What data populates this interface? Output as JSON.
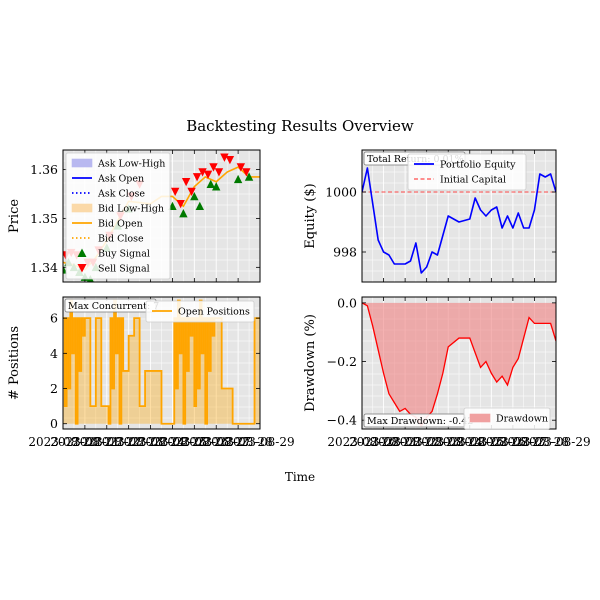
{
  "figure": {
    "title": "Backtesting Results Overview",
    "xlabel": "Time"
  },
  "chart_data": [
    {
      "type": "line",
      "panel": "price",
      "ylabel": "Price",
      "yticks": [
        "1.34",
        "1.35",
        "1.36"
      ],
      "ylim": [
        1.337,
        1.364
      ],
      "xticks": [
        "2023-08-20",
        "2023-08-21",
        "2023-08-22",
        "2023-08-23",
        "2023-08-24",
        "2023-08-25",
        "2023-08-26",
        "2023-08-27",
        "2023-08-28",
        "2023-08-29"
      ],
      "xlim": [
        "2023-08-20",
        "2023-08-29"
      ],
      "grid": true,
      "legend_placement": "upper-left",
      "legend": [
        {
          "label": "Ask Low-High",
          "kind": "fill",
          "color": "#b8b8f0"
        },
        {
          "label": "Ask Open",
          "kind": "line",
          "color": "#0000ff"
        },
        {
          "label": "Ask Close",
          "kind": "dotted",
          "color": "#0000ff"
        },
        {
          "label": "Bid Low-High",
          "kind": "fill",
          "color": "#fbd9a8"
        },
        {
          "label": "Bid Open",
          "kind": "line",
          "color": "#ffa500"
        },
        {
          "label": "Bid Close",
          "kind": "dotted",
          "color": "#ffa500"
        },
        {
          "label": "Buy Signal",
          "kind": "up-triangle",
          "color": "#007a00"
        },
        {
          "label": "Sell Signal",
          "kind": "down-triangle",
          "color": "#ff0000"
        }
      ],
      "series": [
        {
          "name": "Bid Open",
          "color": "#ffa500",
          "x": [
            "2023-08-20",
            "2023-08-20 12:00",
            "2023-08-21",
            "2023-08-21 12:00",
            "2023-08-22",
            "2023-08-22 12:00",
            "2023-08-23",
            "2023-08-24",
            "2023-08-24 12:00",
            "2023-08-25",
            "2023-08-25 12:00",
            "2023-08-26",
            "2023-08-26 12:00",
            "2023-08-27",
            "2023-08-27 12:00",
            "2023-08-28",
            "2023-08-28 12:00",
            "2023-08-29"
          ],
          "values": [
            1.341,
            1.3405,
            1.3395,
            1.342,
            1.3455,
            1.3495,
            1.3535,
            1.353,
            1.3545,
            1.3545,
            1.3525,
            1.3565,
            1.3585,
            1.3575,
            1.3595,
            1.3605,
            1.3585,
            1.3585
          ]
        }
      ],
      "buy_signals": {
        "x": [
          "2023-08-20",
          "2023-08-20 06:00",
          "2023-08-20 12:00",
          "2023-08-20 18:00",
          "2023-08-21",
          "2023-08-21 06:00",
          "2023-08-21 12:00",
          "2023-08-22",
          "2023-08-22 12:00",
          "2023-08-23",
          "2023-08-25",
          "2023-08-25 12:00",
          "2023-08-26",
          "2023-08-26 06:00",
          "2023-08-26 18:00",
          "2023-08-27",
          "2023-08-28",
          "2023-08-28 12:00"
        ],
        "values": [
          1.3395,
          1.341,
          1.34,
          1.339,
          1.338,
          1.3375,
          1.34,
          1.344,
          1.3485,
          1.352,
          1.3525,
          1.351,
          1.3545,
          1.3525,
          1.357,
          1.3565,
          1.358,
          1.3585
        ]
      },
      "sell_signals": {
        "x": [
          "2023-08-20 03:00",
          "2023-08-20 09:00",
          "2023-08-20 15:00",
          "2023-08-21 03:00",
          "2023-08-21 09:00",
          "2023-08-21 15:00",
          "2023-08-22 03:00",
          "2023-08-22 15:00",
          "2023-08-23 03:00",
          "2023-08-23 12:00",
          "2023-08-25 03:00",
          "2023-08-25 09:00",
          "2023-08-25 15:00",
          "2023-08-25 21:00",
          "2023-08-26 03:00",
          "2023-08-26 09:00",
          "2023-08-26 15:00",
          "2023-08-26 21:00",
          "2023-08-27 03:00",
          "2023-08-27 09:00",
          "2023-08-27 15:00",
          "2023-08-28 03:00",
          "2023-08-28 09:00"
        ],
        "values": [
          1.3425,
          1.343,
          1.3425,
          1.341,
          1.341,
          1.3435,
          1.3465,
          1.3505,
          1.3545,
          1.357,
          1.3555,
          1.353,
          1.3575,
          1.3555,
          1.3585,
          1.3595,
          1.359,
          1.3605,
          1.3595,
          1.3625,
          1.362,
          1.3605,
          1.3595
        ]
      }
    },
    {
      "type": "line",
      "panel": "equity",
      "ylabel": "Equity ($)",
      "yticks": [
        "998",
        "1000"
      ],
      "ylim": [
        997.0,
        1001.4
      ],
      "xticks": [
        "2023-08-20",
        "2023-08-21",
        "2023-08-22",
        "2023-08-23",
        "2023-08-24",
        "2023-08-25",
        "2023-08-26",
        "2023-08-27",
        "2023-08-28",
        "2023-08-29"
      ],
      "xlim": [
        "2023-08-20",
        "2023-08-29"
      ],
      "grid": true,
      "legend_placement": "upper-right",
      "annotation": "Total Return: 0.01%",
      "legend": [
        {
          "label": "Portfolio Equity",
          "kind": "line",
          "color": "#0000ff"
        },
        {
          "label": "Initial Capital",
          "kind": "dashed",
          "color": "#ff4c4c"
        }
      ],
      "initial_capital": 1000,
      "series": [
        {
          "name": "Portfolio Equity",
          "color": "#0000ff",
          "x": [
            "2023-08-20",
            "2023-08-20 06:00",
            "2023-08-20 12:00",
            "2023-08-20 18:00",
            "2023-08-21",
            "2023-08-21 06:00",
            "2023-08-21 12:00",
            "2023-08-22",
            "2023-08-22 06:00",
            "2023-08-22 12:00",
            "2023-08-22 18:00",
            "2023-08-23",
            "2023-08-23 06:00",
            "2023-08-23 12:00",
            "2023-08-24",
            "2023-08-24 12:00",
            "2023-08-25",
            "2023-08-25 06:00",
            "2023-08-25 12:00",
            "2023-08-25 18:00",
            "2023-08-26",
            "2023-08-26 06:00",
            "2023-08-26 12:00",
            "2023-08-26 18:00",
            "2023-08-27",
            "2023-08-27 06:00",
            "2023-08-27 12:00",
            "2023-08-27 18:00",
            "2023-08-28",
            "2023-08-28 06:00",
            "2023-08-28 12:00",
            "2023-08-28 18:00",
            "2023-08-29"
          ],
          "values": [
            1000.0,
            1000.8,
            999.6,
            998.4,
            998.0,
            997.9,
            997.6,
            997.6,
            997.7,
            998.3,
            997.3,
            997.5,
            998.0,
            997.9,
            999.2,
            999.0,
            999.1,
            999.8,
            999.4,
            999.2,
            999.4,
            999.5,
            998.8,
            999.2,
            998.8,
            999.3,
            998.8,
            998.8,
            999.4,
            1000.6,
            1000.5,
            1000.6,
            1000.0
          ]
        }
      ]
    },
    {
      "type": "area",
      "panel": "positions",
      "ylabel": "# Positions",
      "yticks": [
        "0",
        "2",
        "4",
        "6"
      ],
      "ylim": [
        -0.3,
        7.2
      ],
      "xticks": [
        "2023-08-20",
        "2023-08-21",
        "2023-08-22",
        "2023-08-23",
        "2023-08-24",
        "2023-08-25",
        "2023-08-26",
        "2023-08-27",
        "2023-08-28",
        "2023-08-29"
      ],
      "xlim": [
        "2023-08-20",
        "2023-08-29"
      ],
      "grid": true,
      "legend_placement": "upper-right",
      "annotation": "Max Concurrent: 7",
      "legend": [
        {
          "label": "Open Positions",
          "kind": "line",
          "color": "#ffa500"
        }
      ],
      "series": [
        {
          "name": "Open Positions",
          "color": "#ffa500",
          "x": [
            "2023-08-20",
            "2023-08-20 02:00",
            "2023-08-20 04:00",
            "2023-08-20 06:00",
            "2023-08-20 08:00",
            "2023-08-20 10:00",
            "2023-08-20 12:00",
            "2023-08-20 14:00",
            "2023-08-20 16:00",
            "2023-08-20 18:00",
            "2023-08-20 20:00",
            "2023-08-20 22:00",
            "2023-08-21",
            "2023-08-21 06:00",
            "2023-08-21 12:00",
            "2023-08-21 18:00",
            "2023-08-22",
            "2023-08-22 02:00",
            "2023-08-22 04:00",
            "2023-08-22 06:00",
            "2023-08-22 08:00",
            "2023-08-22 10:00",
            "2023-08-22 12:00",
            "2023-08-22 14:00",
            "2023-08-22 16:00",
            "2023-08-22 18:00",
            "2023-08-23",
            "2023-08-23 06:00",
            "2023-08-23 12:00",
            "2023-08-23 18:00",
            "2023-08-24",
            "2023-08-24 12:00",
            "2023-08-25",
            "2023-08-25 02:00",
            "2023-08-25 04:00",
            "2023-08-25 06:00",
            "2023-08-25 08:00",
            "2023-08-25 10:00",
            "2023-08-25 12:00",
            "2023-08-25 14:00",
            "2023-08-25 16:00",
            "2023-08-25 18:00",
            "2023-08-25 20:00",
            "2023-08-25 22:00",
            "2023-08-26",
            "2023-08-26 02:00",
            "2023-08-26 04:00",
            "2023-08-26 06:00",
            "2023-08-26 08:00",
            "2023-08-26 10:00",
            "2023-08-26 12:00",
            "2023-08-26 14:00",
            "2023-08-26 16:00",
            "2023-08-26 18:00",
            "2023-08-26 20:00",
            "2023-08-26 22:00",
            "2023-08-27",
            "2023-08-27 06:00",
            "2023-08-27 12:00",
            "2023-08-27 18:00",
            "2023-08-28",
            "2023-08-28 06:00",
            "2023-08-28 12:00",
            "2023-08-28 18:00",
            "2023-08-29"
          ],
          "values": [
            6,
            1,
            6,
            2,
            7,
            4,
            6,
            0,
            6,
            3,
            6,
            5,
            6,
            1,
            6,
            1,
            1,
            0,
            6,
            2,
            7,
            4,
            6,
            0,
            6,
            3,
            5,
            6,
            1,
            3,
            3,
            0,
            0,
            6,
            2,
            7,
            4,
            6,
            0,
            6,
            3,
            6,
            5,
            6,
            1,
            6,
            2,
            7,
            4,
            6,
            0,
            6,
            3,
            6,
            5,
            6,
            6,
            2,
            2,
            0,
            0,
            0,
            0,
            6,
            6
          ]
        }
      ]
    },
    {
      "type": "area",
      "panel": "drawdown",
      "ylabel": "Drawdown (%)",
      "yticks": [
        "−0.4",
        "−0.2",
        "0.0"
      ],
      "ylim": [
        -0.43,
        0.02
      ],
      "xticks": [
        "2023-08-20",
        "2023-08-21",
        "2023-08-22",
        "2023-08-23",
        "2023-08-24",
        "2023-08-25",
        "2023-08-26",
        "2023-08-27",
        "2023-08-28",
        "2023-08-29"
      ],
      "xlim": [
        "2023-08-20",
        "2023-08-29"
      ],
      "grid": true,
      "legend_placement": "lower-right",
      "annotation": "Max Drawdown: -0.42",
      "legend": [
        {
          "label": "Drawdown",
          "kind": "fill",
          "color": "#f0a0a0"
        }
      ],
      "series": [
        {
          "name": "Drawdown",
          "color": "#ff0000",
          "x": [
            "2023-08-20",
            "2023-08-20 06:00",
            "2023-08-20 12:00",
            "2023-08-20 18:00",
            "2023-08-21",
            "2023-08-21 06:00",
            "2023-08-21 12:00",
            "2023-08-21 18:00",
            "2023-08-22",
            "2023-08-22 06:00",
            "2023-08-22 12:00",
            "2023-08-22 18:00",
            "2023-08-23",
            "2023-08-23 06:00",
            "2023-08-23 12:00",
            "2023-08-23 18:00",
            "2023-08-24",
            "2023-08-24 12:00",
            "2023-08-25",
            "2023-08-25 06:00",
            "2023-08-25 12:00",
            "2023-08-25 18:00",
            "2023-08-26",
            "2023-08-26 06:00",
            "2023-08-26 12:00",
            "2023-08-26 18:00",
            "2023-08-27",
            "2023-08-27 06:00",
            "2023-08-27 12:00",
            "2023-08-27 18:00",
            "2023-08-28",
            "2023-08-28 06:00",
            "2023-08-28 12:00",
            "2023-08-28 18:00",
            "2023-08-29"
          ],
          "values": [
            0.0,
            -0.01,
            -0.08,
            -0.16,
            -0.24,
            -0.31,
            -0.34,
            -0.37,
            -0.36,
            -0.38,
            -0.39,
            -0.42,
            -0.39,
            -0.37,
            -0.31,
            -0.24,
            -0.15,
            -0.12,
            -0.12,
            -0.17,
            -0.22,
            -0.2,
            -0.24,
            -0.27,
            -0.25,
            -0.28,
            -0.22,
            -0.19,
            -0.12,
            -0.05,
            -0.07,
            -0.07,
            -0.07,
            -0.07,
            -0.13
          ]
        }
      ]
    }
  ]
}
